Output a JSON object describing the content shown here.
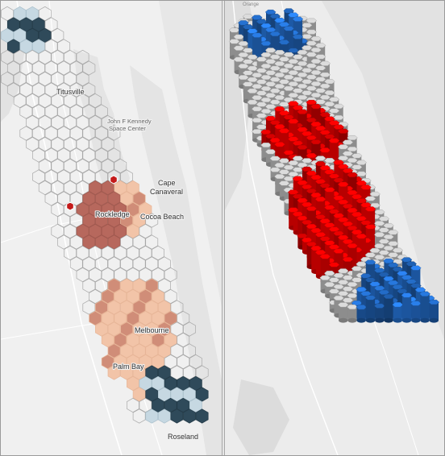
{
  "map": {
    "left_panel": {
      "labels": {
        "titusville": "Titusville",
        "kennedy_line1": "John F Kennedy",
        "kennedy_line2": "Space Center",
        "cape_line1": "Cape",
        "cape_line2": "Canaveral",
        "rockledge": "Rockledge",
        "cocoa_beach": "Cocoa Beach",
        "melbourne": "Melbourne",
        "palm_bay": "Palm Bay",
        "roseland": "Roseland"
      }
    },
    "right_panel": {
      "labels": {
        "top_place": "Orange"
      }
    },
    "colors": {
      "hot_dark": "#b7685d",
      "hot_mid": "#d08d78",
      "hot_light": "#f2c4a8",
      "cold_dark": "#2f4a5a",
      "cold_light": "#c6d8e2",
      "cold_pale": "#dde8ee",
      "extrude_red": "#e00000",
      "extrude_blue": "#1f5fb0",
      "extrude_gray": "#c4c4c4"
    }
  }
}
